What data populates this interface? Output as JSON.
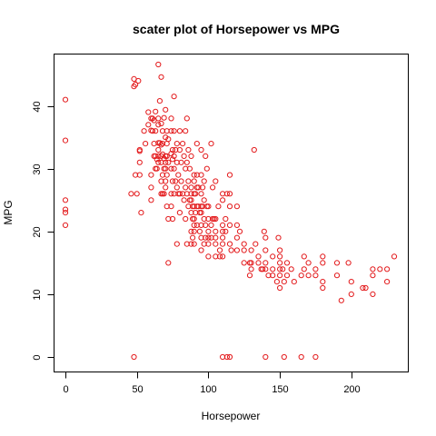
{
  "chart_data": {
    "type": "scatter",
    "title": "scater plot of Horsepower vs MPG",
    "xlabel": "Horsepower",
    "ylabel": "MPG",
    "xlim": [
      0,
      230
    ],
    "ylim": [
      0,
      46.6
    ],
    "xticks": [
      0,
      50,
      100,
      150,
      200
    ],
    "yticks": [
      0,
      10,
      20,
      30,
      40
    ],
    "grid": false,
    "legend": "none",
    "marker": "open-circle",
    "color": "#e31a1c",
    "points": [
      [
        0,
        41
      ],
      [
        0,
        34.5
      ],
      [
        0,
        25
      ],
      [
        0,
        23.5
      ],
      [
        0,
        23
      ],
      [
        0,
        21
      ],
      [
        46,
        26
      ],
      [
        48,
        0
      ],
      [
        48,
        43.1
      ],
      [
        48,
        44.3
      ],
      [
        49,
        43.4
      ],
      [
        49,
        29
      ],
      [
        50,
        26
      ],
      [
        51,
        44
      ],
      [
        52,
        32.8
      ],
      [
        52,
        33
      ],
      [
        52,
        31
      ],
      [
        52,
        29
      ],
      [
        53,
        23
      ],
      [
        55,
        36
      ],
      [
        56,
        34
      ],
      [
        58,
        39
      ],
      [
        58,
        37
      ],
      [
        60,
        38
      ],
      [
        60,
        36.1
      ],
      [
        60,
        29
      ],
      [
        60,
        27
      ],
      [
        60,
        25
      ],
      [
        61,
        38
      ],
      [
        61,
        36
      ],
      [
        62,
        37.7
      ],
      [
        62,
        34
      ],
      [
        62,
        32
      ],
      [
        63,
        39.1
      ],
      [
        63,
        36
      ],
      [
        63,
        32
      ],
      [
        63,
        30
      ],
      [
        64,
        31.5
      ],
      [
        64,
        30
      ],
      [
        65,
        46.6
      ],
      [
        65,
        38
      ],
      [
        65,
        37
      ],
      [
        65,
        34.1
      ],
      [
        65,
        33
      ],
      [
        65,
        32
      ],
      [
        65,
        31
      ],
      [
        66,
        40.8
      ],
      [
        66,
        34.1
      ],
      [
        67,
        44.6
      ],
      [
        67,
        37.2
      ],
      [
        67,
        33.8
      ],
      [
        67,
        32
      ],
      [
        67,
        31
      ],
      [
        67,
        28
      ],
      [
        67,
        26
      ],
      [
        68,
        36
      ],
      [
        68,
        34
      ],
      [
        68,
        32.3
      ],
      [
        68,
        29
      ],
      [
        68,
        26
      ],
      [
        69,
        38.1
      ],
      [
        69,
        31.6
      ],
      [
        69,
        30
      ],
      [
        69,
        26
      ],
      [
        70,
        39.4
      ],
      [
        70,
        35
      ],
      [
        70,
        32
      ],
      [
        70,
        31
      ],
      [
        70,
        30
      ],
      [
        70,
        28
      ],
      [
        70,
        27
      ],
      [
        71,
        36
      ],
      [
        71,
        34
      ],
      [
        71,
        32
      ],
      [
        71,
        29
      ],
      [
        71,
        24
      ],
      [
        72,
        34.7
      ],
      [
        72,
        31
      ],
      [
        72,
        15
      ],
      [
        72,
        22
      ],
      [
        74,
        38
      ],
      [
        74,
        36
      ],
      [
        74,
        32.4
      ],
      [
        74,
        30
      ],
      [
        74,
        26
      ],
      [
        74,
        24
      ],
      [
        75,
        33
      ],
      [
        75,
        31.5
      ],
      [
        75,
        28
      ],
      [
        75,
        22
      ],
      [
        76,
        41.5
      ],
      [
        76,
        36
      ],
      [
        76,
        32
      ],
      [
        76,
        30
      ],
      [
        76,
        26
      ],
      [
        77,
        33
      ],
      [
        77,
        28
      ],
      [
        78,
        34
      ],
      [
        78,
        31
      ],
      [
        78,
        27
      ],
      [
        78,
        18
      ],
      [
        79,
        29
      ],
      [
        79,
        26
      ],
      [
        80,
        36
      ],
      [
        80,
        33
      ],
      [
        80,
        26
      ],
      [
        80,
        23
      ],
      [
        81,
        31
      ],
      [
        81,
        28
      ],
      [
        82,
        34
      ],
      [
        82,
        26
      ],
      [
        83,
        32
      ],
      [
        83,
        25
      ],
      [
        84,
        36
      ],
      [
        84,
        30
      ],
      [
        84,
        27
      ],
      [
        84,
        22
      ],
      [
        85,
        38
      ],
      [
        85,
        31
      ],
      [
        85,
        26
      ],
      [
        85,
        18
      ],
      [
        86,
        33
      ],
      [
        86,
        28
      ],
      [
        86,
        24
      ],
      [
        87,
        30
      ],
      [
        87,
        25
      ],
      [
        88,
        32
      ],
      [
        88,
        27
      ],
      [
        88,
        26
      ],
      [
        88,
        25
      ],
      [
        88,
        23
      ],
      [
        88,
        20
      ],
      [
        88,
        18
      ],
      [
        89,
        24
      ],
      [
        89,
        22
      ],
      [
        89,
        19
      ],
      [
        90,
        29
      ],
      [
        90,
        28
      ],
      [
        90,
        26
      ],
      [
        90,
        24
      ],
      [
        90,
        22
      ],
      [
        90,
        21
      ],
      [
        90,
        20
      ],
      [
        90,
        18
      ],
      [
        91,
        26
      ],
      [
        91,
        23
      ],
      [
        92,
        34
      ],
      [
        92,
        29
      ],
      [
        92,
        27
      ],
      [
        92,
        24
      ],
      [
        92,
        21
      ],
      [
        93,
        27
      ],
      [
        93,
        24
      ],
      [
        94,
        23
      ],
      [
        94,
        20
      ],
      [
        95,
        33
      ],
      [
        95,
        29
      ],
      [
        95,
        26
      ],
      [
        95,
        24
      ],
      [
        95,
        23
      ],
      [
        95,
        21
      ],
      [
        95,
        19
      ],
      [
        95,
        17
      ],
      [
        96,
        27
      ],
      [
        96,
        24
      ],
      [
        97,
        28
      ],
      [
        97,
        25
      ],
      [
        97,
        22
      ],
      [
        97,
        18
      ],
      [
        98,
        32
      ],
      [
        98,
        21
      ],
      [
        98,
        19
      ],
      [
        99,
        30
      ],
      [
        99,
        24
      ],
      [
        100,
        24
      ],
      [
        100,
        22
      ],
      [
        100,
        20
      ],
      [
        100,
        19
      ],
      [
        100,
        18
      ],
      [
        100,
        16
      ],
      [
        102,
        34
      ],
      [
        102,
        21
      ],
      [
        102,
        19
      ],
      [
        103,
        27
      ],
      [
        103,
        22
      ],
      [
        104,
        22
      ],
      [
        105,
        28
      ],
      [
        105,
        22
      ],
      [
        105,
        20
      ],
      [
        105,
        19
      ],
      [
        105,
        18
      ],
      [
        105,
        16
      ],
      [
        107,
        24
      ],
      [
        108,
        17
      ],
      [
        108,
        16
      ],
      [
        110,
        0
      ],
      [
        110,
        26
      ],
      [
        110,
        25
      ],
      [
        110,
        21
      ],
      [
        110,
        20
      ],
      [
        110,
        19
      ],
      [
        110,
        18
      ],
      [
        110,
        16
      ],
      [
        112,
        22
      ],
      [
        112,
        20
      ],
      [
        113,
        26
      ],
      [
        113,
        0
      ],
      [
        115,
        29
      ],
      [
        115,
        0
      ],
      [
        115,
        26
      ],
      [
        115,
        24
      ],
      [
        115,
        21
      ],
      [
        115,
        18
      ],
      [
        116,
        17
      ],
      [
        120,
        24
      ],
      [
        120,
        21
      ],
      [
        120,
        19
      ],
      [
        120,
        17
      ],
      [
        122,
        20
      ],
      [
        125,
        18
      ],
      [
        125,
        17
      ],
      [
        125,
        15
      ],
      [
        129,
        15
      ],
      [
        129,
        13
      ],
      [
        130,
        17
      ],
      [
        130,
        15
      ],
      [
        130,
        14
      ],
      [
        132,
        33
      ],
      [
        133,
        18
      ],
      [
        135,
        16
      ],
      [
        135,
        15
      ],
      [
        137,
        14
      ],
      [
        138,
        14
      ],
      [
        139,
        20
      ],
      [
        140,
        19
      ],
      [
        140,
        17
      ],
      [
        140,
        15
      ],
      [
        140,
        14
      ],
      [
        140,
        0
      ],
      [
        142,
        13
      ],
      [
        145,
        16
      ],
      [
        145,
        14
      ],
      [
        145,
        13
      ],
      [
        148,
        12
      ],
      [
        149,
        19
      ],
      [
        150,
        17
      ],
      [
        150,
        16
      ],
      [
        150,
        15
      ],
      [
        150,
        14
      ],
      [
        150,
        13
      ],
      [
        150,
        11
      ],
      [
        152,
        14
      ],
      [
        153,
        12
      ],
      [
        153,
        0
      ],
      [
        155,
        15
      ],
      [
        155,
        13
      ],
      [
        158,
        14
      ],
      [
        160,
        12
      ],
      [
        165,
        13
      ],
      [
        165,
        0
      ],
      [
        167,
        16
      ],
      [
        167,
        14
      ],
      [
        170,
        15
      ],
      [
        170,
        13
      ],
      [
        175,
        14
      ],
      [
        175,
        13
      ],
      [
        175,
        0
      ],
      [
        180,
        16
      ],
      [
        180,
        15
      ],
      [
        180,
        12
      ],
      [
        180,
        11
      ],
      [
        190,
        15
      ],
      [
        190,
        13
      ],
      [
        193,
        9
      ],
      [
        198,
        15
      ],
      [
        200,
        12
      ],
      [
        200,
        10
      ],
      [
        208,
        11
      ],
      [
        210,
        11
      ],
      [
        215,
        14
      ],
      [
        215,
        13
      ],
      [
        215,
        10
      ],
      [
        220,
        14
      ],
      [
        225,
        14
      ],
      [
        225,
        12
      ],
      [
        230,
        16
      ]
    ]
  }
}
